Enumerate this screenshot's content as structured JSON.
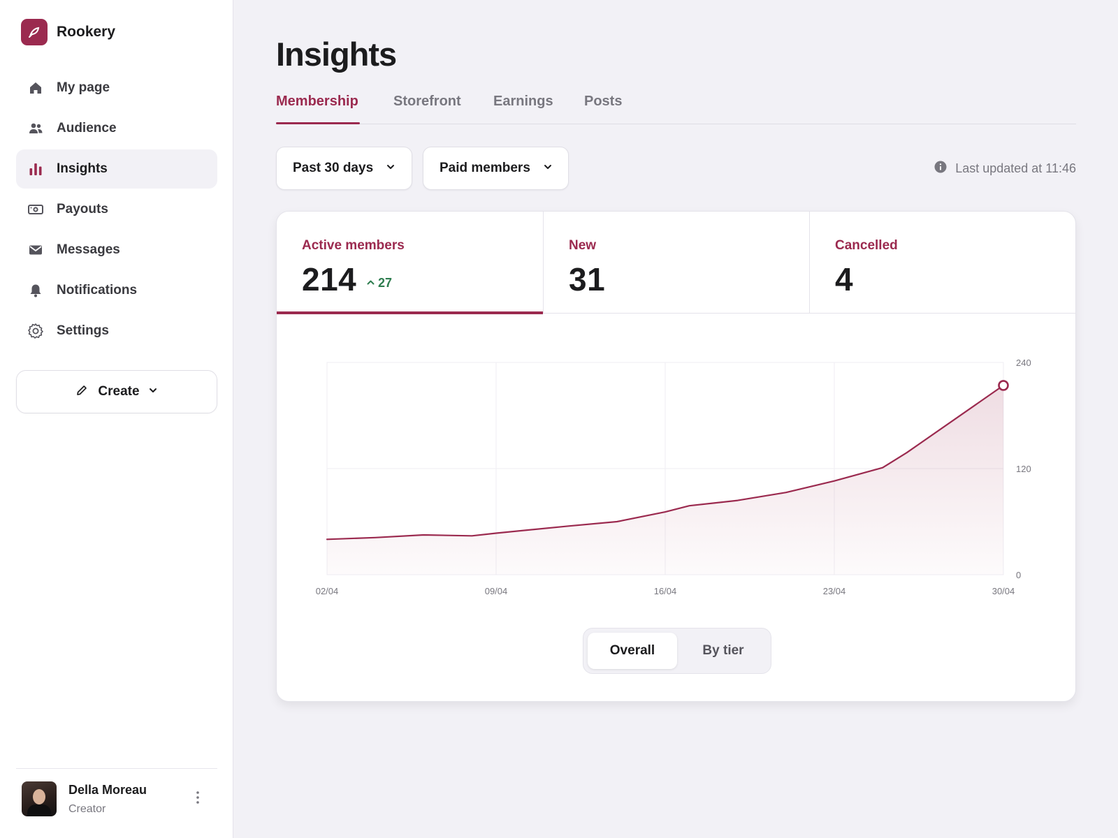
{
  "brand": {
    "name": "Rookery",
    "logo_icon": "quill-logo-icon"
  },
  "sidebar": {
    "items": [
      {
        "label": "My page",
        "icon": "home-icon",
        "active": false
      },
      {
        "label": "Audience",
        "icon": "people-icon",
        "active": false
      },
      {
        "label": "Insights",
        "icon": "bar-chart-icon",
        "active": true
      },
      {
        "label": "Payouts",
        "icon": "banknote-icon",
        "active": false
      },
      {
        "label": "Messages",
        "icon": "envelope-icon",
        "active": false
      },
      {
        "label": "Notifications",
        "icon": "bell-icon",
        "active": false
      },
      {
        "label": "Settings",
        "icon": "gear-icon",
        "active": false
      }
    ],
    "create_label": "Create"
  },
  "user": {
    "name": "Della Moreau",
    "role": "Creator"
  },
  "page": {
    "title": "Insights"
  },
  "tabs": [
    {
      "label": "Membership",
      "active": true
    },
    {
      "label": "Storefront",
      "active": false
    },
    {
      "label": "Earnings",
      "active": false
    },
    {
      "label": "Posts",
      "active": false
    }
  ],
  "filters": {
    "period": "Past 30 days",
    "audience": "Paid members"
  },
  "last_updated": "Last updated at 11:46",
  "kpis": [
    {
      "label": "Active members",
      "value": "214",
      "delta": "27",
      "active": true
    },
    {
      "label": "New",
      "value": "31",
      "active": false
    },
    {
      "label": "Cancelled",
      "value": "4",
      "active": false
    }
  ],
  "view_toggle": {
    "options": [
      "Overall",
      "By tier"
    ],
    "selected": "Overall"
  },
  "colors": {
    "accent": "#9b2a4f",
    "positive": "#2e7d4f",
    "background": "#f2f1f6"
  },
  "chart_data": {
    "type": "area",
    "x": [
      "02/04",
      "04/04",
      "06/04",
      "08/04",
      "09/04",
      "12/04",
      "14/04",
      "16/04",
      "17/04",
      "19/04",
      "21/04",
      "23/04",
      "25/04",
      "26/04",
      "30/04"
    ],
    "series": [
      {
        "values": [
          40,
          42,
          45,
          44,
          47,
          55,
          60,
          71,
          78,
          84,
          93,
          106,
          121,
          138,
          214
        ]
      }
    ],
    "xticks": [
      "02/04",
      "09/04",
      "16/04",
      "23/04",
      "30/04"
    ],
    "yticks": [
      "0",
      "120",
      "240"
    ],
    "ylim": [
      0,
      240
    ],
    "grid": true,
    "y_axis_side": "right"
  }
}
